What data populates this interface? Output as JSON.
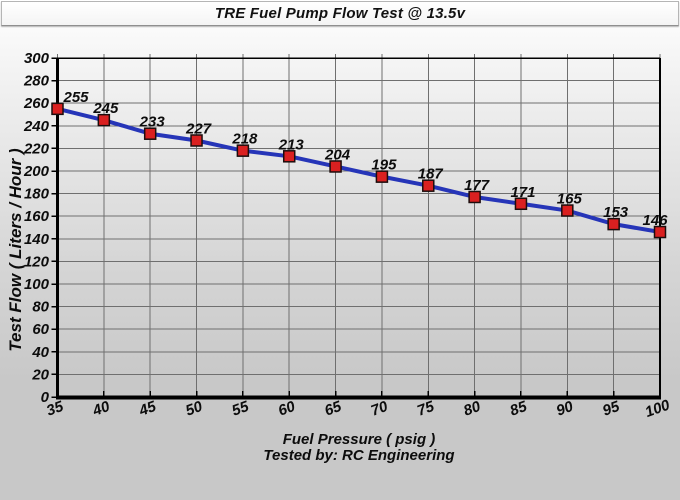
{
  "title": "TRE Fuel Pump Flow Test @ 13.5v",
  "chart_data": {
    "type": "line",
    "title": "TRE Fuel Pump Flow Test @ 13.5v",
    "x": [
      35,
      40,
      45,
      50,
      55,
      60,
      65,
      70,
      75,
      80,
      85,
      90,
      95,
      100
    ],
    "values": [
      255,
      245,
      233,
      227,
      218,
      213,
      204,
      195,
      187,
      177,
      171,
      165,
      153,
      146
    ],
    "data_labels": [
      "255",
      "245",
      "233",
      "227",
      "218",
      "213",
      "204",
      "195",
      "187",
      "177",
      "171",
      "165",
      "153",
      "146"
    ],
    "xlabel": "Fuel Pressure ( psig )",
    "ylabel": "Test Flow ( Liters / Hour )",
    "footer": "Tested by: RC Engineering",
    "xlim": [
      35,
      100
    ],
    "ylim": [
      0,
      300
    ],
    "x_ticks": [
      35,
      40,
      45,
      50,
      55,
      60,
      65,
      70,
      75,
      80,
      85,
      90,
      95,
      100
    ],
    "y_ticks": [
      0,
      20,
      40,
      60,
      80,
      100,
      120,
      140,
      160,
      180,
      200,
      220,
      240,
      260,
      280,
      300
    ],
    "grid": true,
    "legend": "none",
    "colors": {
      "line": "#2635b8",
      "marker_fill": "#da2020",
      "marker_border": "#1c0d0d",
      "grid": "#6f6f6f",
      "axis": "#000000",
      "text": "#0c0c0c"
    }
  }
}
